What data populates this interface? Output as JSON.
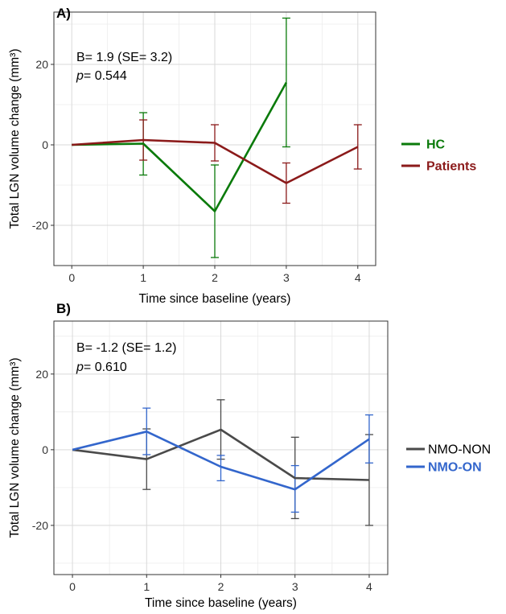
{
  "chart_data": [
    {
      "type": "line",
      "panel_label": "A)",
      "xlabel": "Time since baseline (years)",
      "ylabel": "Total LGN volume change (mm³)",
      "xlim": [
        -0.25,
        4.25
      ],
      "ylim": [
        -30,
        33
      ],
      "xticks": [
        0,
        1,
        2,
        3,
        4
      ],
      "yticks": [
        -20,
        0,
        20
      ],
      "grid": true,
      "annotation": {
        "line1": "B= 1.9 (SE= 3.2)",
        "p_symbol": "p",
        "p_value": "= 0.544"
      },
      "legend_position": "right",
      "series": [
        {
          "name": "HC",
          "color": "#0a7a0a",
          "x": [
            0,
            1,
            2,
            3
          ],
          "y": [
            0,
            0.3,
            -16.5,
            15.5
          ],
          "lower": [
            null,
            -7.5,
            -28,
            -0.5
          ],
          "upper": [
            null,
            8,
            -5,
            31.5
          ]
        },
        {
          "name": "Patients",
          "color": "#8b1a1a",
          "x": [
            0,
            1,
            2,
            3,
            4
          ],
          "y": [
            0,
            1.2,
            0.5,
            -9.5,
            -0.5
          ],
          "lower": [
            null,
            -3.8,
            -4,
            -14.5,
            -6
          ],
          "upper": [
            null,
            6.2,
            5,
            -4.5,
            5
          ]
        }
      ]
    },
    {
      "type": "line",
      "panel_label": "B)",
      "xlabel": "Time since baseline (years)",
      "ylabel": "Total LGN volume change (mm³)",
      "xlim": [
        -0.25,
        4.25
      ],
      "ylim": [
        -33,
        34
      ],
      "xticks": [
        0,
        1,
        2,
        3,
        4
      ],
      "yticks": [
        -20,
        0,
        20
      ],
      "grid": true,
      "annotation": {
        "line1": "B= -1.2 (SE= 1.2)",
        "p_symbol": "p",
        "p_value": "= 0.610"
      },
      "legend_position": "right",
      "series": [
        {
          "name": "NMO-NON",
          "color": "#4a4a4a",
          "x": [
            0,
            1,
            2,
            3,
            4
          ],
          "y": [
            0,
            -2.5,
            5.3,
            -7.5,
            -8
          ],
          "lower": [
            null,
            -10.5,
            -2.5,
            -18.2,
            -20
          ],
          "upper": [
            null,
            5.5,
            13.2,
            3.3,
            4
          ]
        },
        {
          "name": "NMO-ON",
          "color": "#3366cc",
          "x": [
            0,
            1,
            2,
            3,
            4
          ],
          "y": [
            0,
            4.8,
            -4.5,
            -10.5,
            2.8
          ],
          "lower": [
            null,
            -1.3,
            -8.2,
            -16.5,
            -3.5
          ],
          "upper": [
            null,
            11,
            -1.5,
            -4.2,
            9.2
          ]
        }
      ]
    }
  ]
}
